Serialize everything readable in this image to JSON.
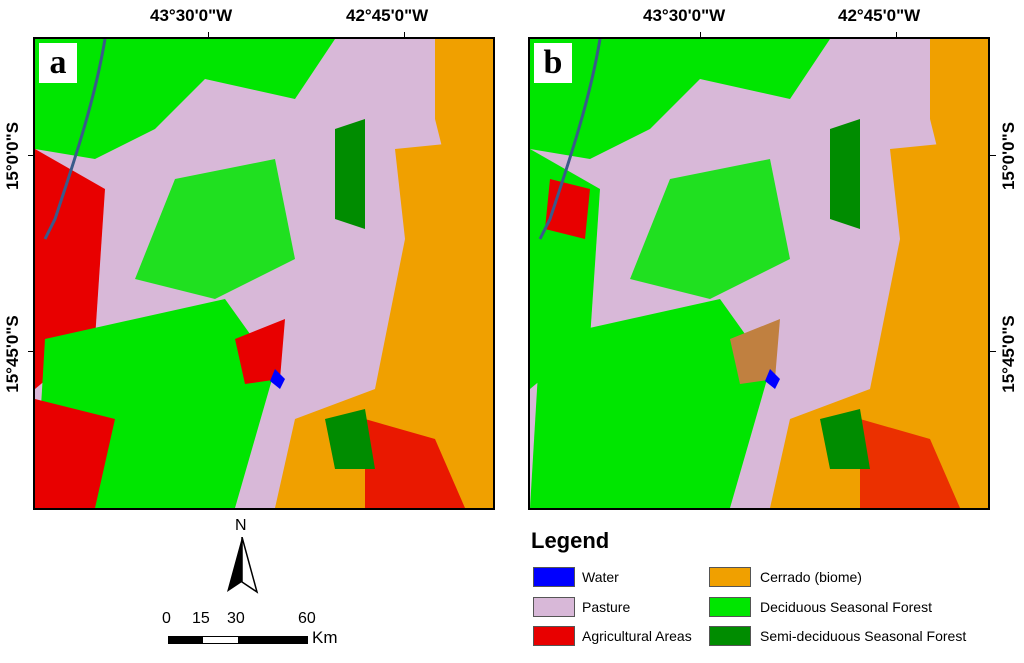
{
  "longitude_labels": [
    "43°30'0\"W",
    "42°45'0\"W"
  ],
  "latitude_labels": [
    "15°0'0\"S",
    "15°45'0\"S"
  ],
  "panels": [
    {
      "tag": "a"
    },
    {
      "tag": "b"
    }
  ],
  "north_arrow": {
    "label": "N"
  },
  "scale_bar": {
    "ticks": [
      "0",
      "15",
      "30",
      "60"
    ],
    "unit": "Km"
  },
  "legend": {
    "title": "Legend",
    "items": [
      {
        "label": "Water",
        "color": "#0000ff"
      },
      {
        "label": "Pasture",
        "color": "#d8b8d8"
      },
      {
        "label": "Agricultural Areas",
        "color": "#e80000"
      },
      {
        "label": "Cerrado (biome)",
        "color": "#f0a000"
      },
      {
        "label": "Deciduous Seasonal Forest",
        "color": "#00e600"
      },
      {
        "label": "Semi-deciduous Seasonal Forest",
        "color": "#008c00"
      }
    ]
  }
}
